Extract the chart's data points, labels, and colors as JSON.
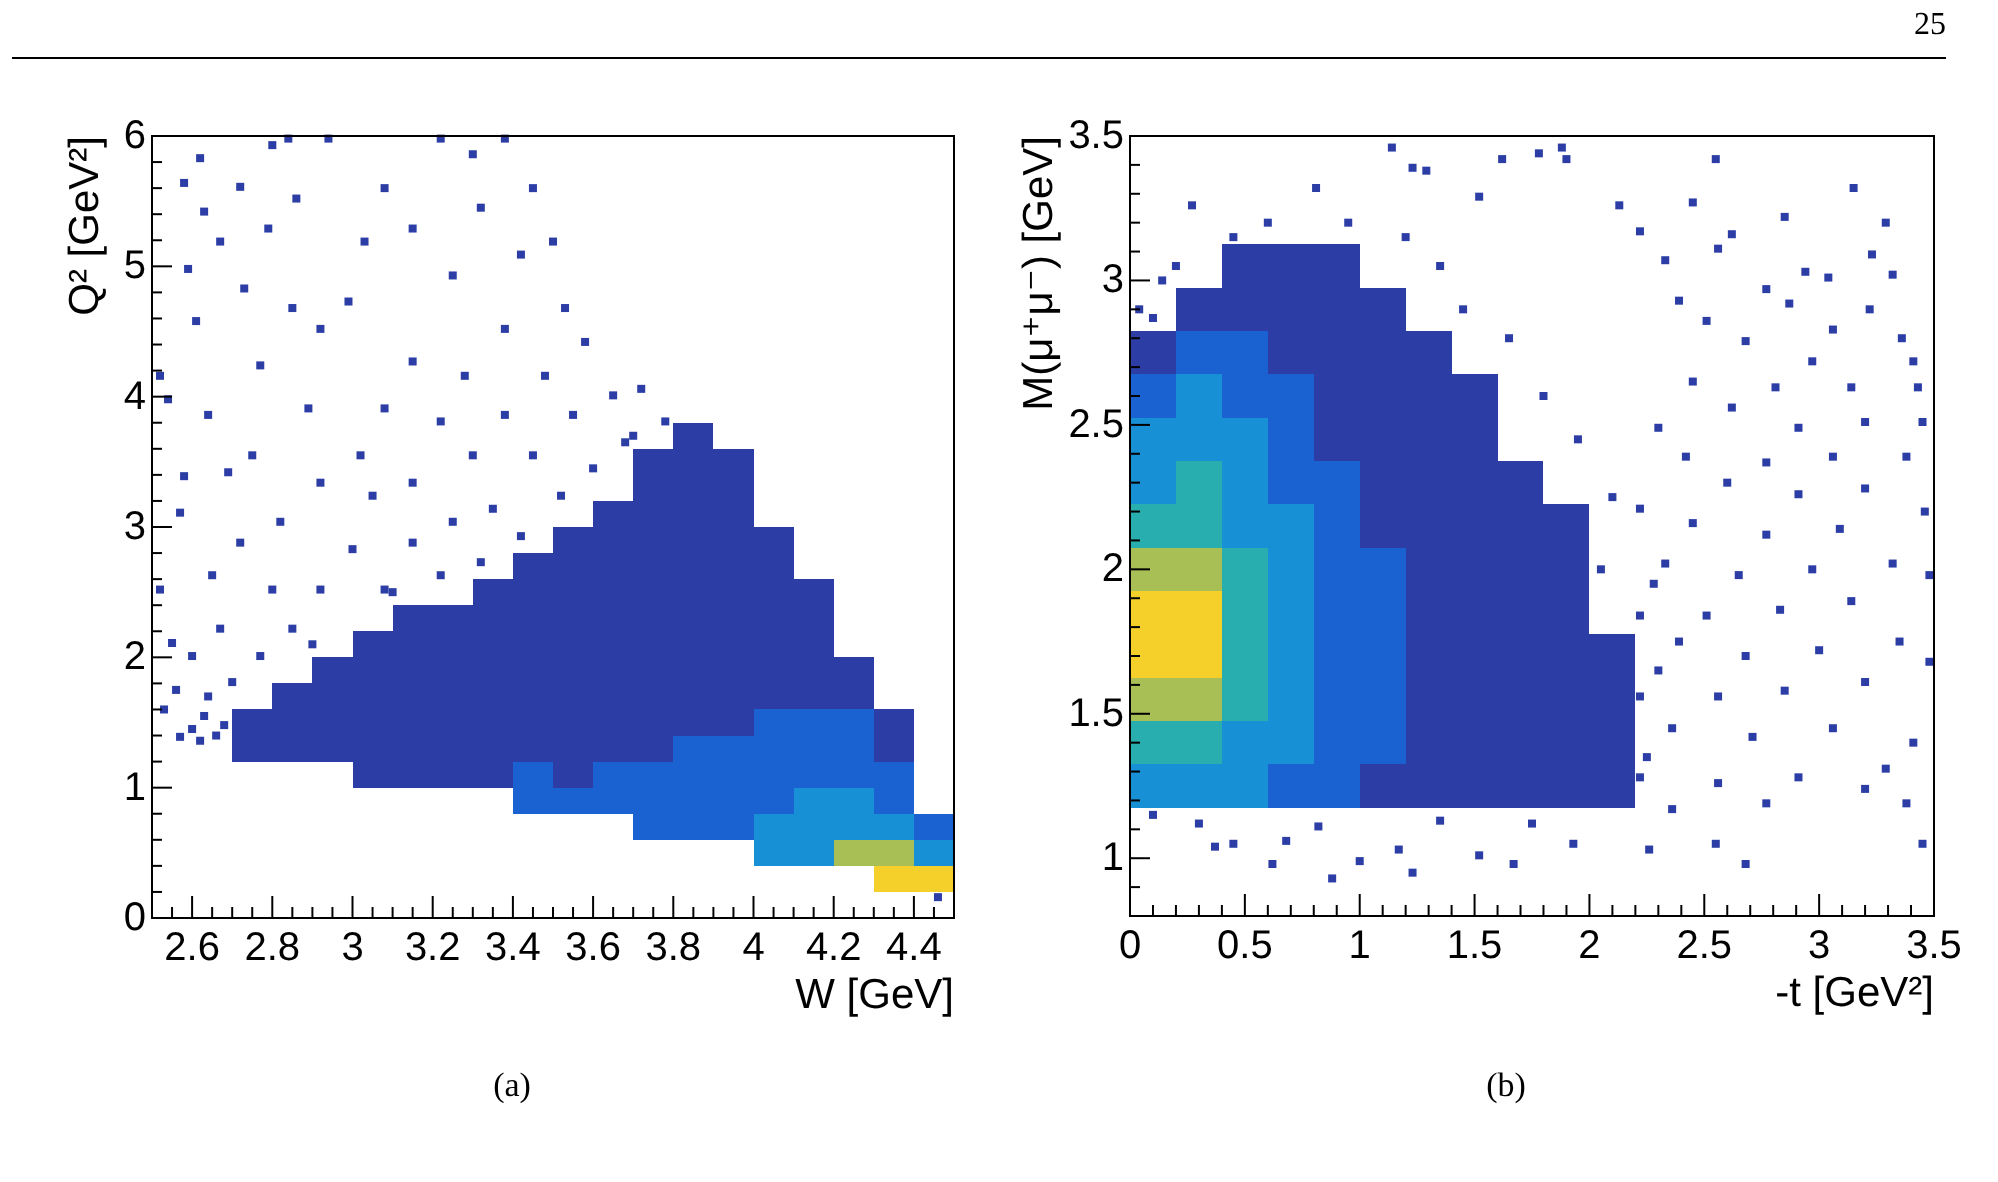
{
  "chart_data": [
    {
      "type": "scatter",
      "xlabel": "W [GeV]",
      "ylabel": "Q² [GeV²]",
      "xlim": [
        2.5,
        4.5
      ],
      "ylim": [
        0,
        6
      ],
      "marker": "square",
      "xticks": [
        {
          "value": 2.55,
          "label": null
        },
        2.6,
        {
          "value": 2.65,
          "label": null
        },
        {
          "value": 2.7,
          "label": null
        },
        {
          "value": 2.75,
          "label": null
        },
        2.8,
        {
          "value": 2.85,
          "label": null
        },
        {
          "value": 2.9,
          "label": null
        },
        {
          "value": 2.95,
          "label": null
        },
        3,
        {
          "value": 3.05,
          "label": null
        },
        {
          "value": 3.1,
          "label": null
        },
        {
          "value": 3.15,
          "label": null
        },
        3.2,
        {
          "value": 3.25,
          "label": null
        },
        {
          "value": 3.3,
          "label": null
        },
        {
          "value": 3.35,
          "label": null
        },
        3.4,
        {
          "value": 3.45,
          "label": null
        },
        {
          "value": 3.5,
          "label": null
        },
        {
          "value": 3.55,
          "label": null
        },
        3.6,
        {
          "value": 3.65,
          "label": null
        },
        {
          "value": 3.7,
          "label": null
        },
        {
          "value": 3.75,
          "label": null
        },
        3.8,
        {
          "value": 3.85,
          "label": null
        },
        {
          "value": 3.9,
          "label": null
        },
        {
          "value": 3.95,
          "label": null
        },
        4,
        {
          "value": 4.05,
          "label": null
        },
        {
          "value": 4.1,
          "label": null
        },
        {
          "value": 4.15,
          "label": null
        },
        4.2,
        {
          "value": 4.25,
          "label": null
        },
        {
          "value": 4.3,
          "label": null
        },
        {
          "value": 4.35,
          "label": null
        },
        4.4,
        {
          "value": 4.45,
          "label": null
        }
      ],
      "yticks": [
        0,
        {
          "value": 0.2,
          "label": null
        },
        {
          "value": 0.4,
          "label": null
        },
        {
          "value": 0.6,
          "label": null
        },
        {
          "value": 0.8,
          "label": null
        },
        1,
        {
          "value": 1.2,
          "label": null
        },
        {
          "value": 1.4,
          "label": null
        },
        {
          "value": 1.6,
          "label": null
        },
        {
          "value": 1.8,
          "label": null
        },
        2,
        {
          "value": 2.2,
          "label": null
        },
        {
          "value": 2.4,
          "label": null
        },
        {
          "value": 2.6,
          "label": null
        },
        {
          "value": 2.8,
          "label": null
        },
        3,
        {
          "value": 3.2,
          "label": null
        },
        {
          "value": 3.4,
          "label": null
        },
        {
          "value": 3.6,
          "label": null
        },
        {
          "value": 3.8,
          "label": null
        },
        4,
        {
          "value": 4.2,
          "label": null
        },
        {
          "value": 4.4,
          "label": null
        },
        {
          "value": 4.6,
          "label": null
        },
        {
          "value": 4.8,
          "label": null
        },
        5,
        {
          "value": 5.2,
          "label": null
        },
        {
          "value": 5.4,
          "label": null
        },
        {
          "value": 5.6,
          "label": null
        },
        {
          "value": 5.8,
          "label": null
        },
        6
      ],
      "series": [
        {
          "color": "#2c3ea6",
          "x": [
            2.75,
            2.75,
            2.85,
            2.85,
            2.85,
            2.95,
            2.95,
            2.95,
            2.95,
            3.05,
            3.05,
            3.05,
            3.05,
            3.05,
            3.05,
            3.15,
            3.15,
            3.15,
            3.15,
            3.15,
            3.15,
            3.15,
            3.25,
            3.25,
            3.25,
            3.25,
            3.25,
            3.25,
            3.25,
            3.35,
            3.35,
            3.35,
            3.35,
            3.35,
            3.35,
            3.35,
            3.35,
            3.45,
            3.45,
            3.45,
            3.45,
            3.45,
            3.45,
            3.45,
            3.45,
            3.55,
            3.55,
            3.55,
            3.55,
            3.55,
            3.55,
            3.55,
            3.55,
            3.55,
            3.55,
            3.65,
            3.65,
            3.65,
            3.65,
            3.65,
            3.65,
            3.65,
            3.65,
            3.65,
            3.65,
            3.75,
            3.75,
            3.75,
            3.75,
            3.75,
            3.75,
            3.75,
            3.75,
            3.75,
            3.75,
            3.75,
            3.75,
            3.85,
            3.85,
            3.85,
            3.85,
            3.85,
            3.85,
            3.85,
            3.85,
            3.85,
            3.85,
            3.85,
            3.85,
            3.95,
            3.95,
            3.95,
            3.95,
            3.95,
            3.95,
            3.95,
            3.95,
            3.95,
            3.95,
            3.95,
            4.05,
            4.05,
            4.05,
            4.05,
            4.05,
            4.05,
            4.05,
            4.15,
            4.15,
            4.15,
            4.15,
            4.15,
            4.25,
            4.25,
            4.35,
            4.35
          ],
          "values": [
            1.3,
            1.5,
            1.3,
            1.5,
            1.7,
            1.3,
            1.5,
            1.7,
            1.9,
            1.1,
            1.3,
            1.5,
            1.7,
            1.9,
            2.1,
            1.1,
            1.3,
            1.5,
            1.7,
            1.9,
            2.1,
            2.3,
            1.1,
            1.3,
            1.5,
            1.7,
            1.9,
            2.1,
            2.3,
            1.1,
            1.3,
            1.5,
            1.7,
            1.9,
            2.1,
            2.3,
            2.5,
            1.3,
            1.5,
            1.7,
            1.9,
            2.1,
            2.3,
            2.5,
            2.7,
            1.1,
            1.3,
            1.5,
            1.7,
            1.9,
            2.1,
            2.3,
            2.5,
            2.7,
            2.9,
            1.3,
            1.5,
            1.7,
            1.9,
            2.1,
            2.3,
            2.5,
            2.7,
            2.9,
            3.1,
            1.3,
            1.5,
            1.7,
            1.9,
            2.1,
            2.3,
            2.5,
            2.7,
            2.9,
            3.1,
            3.3,
            3.5,
            1.5,
            1.7,
            1.9,
            2.1,
            2.3,
            2.5,
            2.7,
            2.9,
            3.1,
            3.3,
            3.5,
            3.7,
            1.5,
            1.7,
            1.9,
            2.1,
            2.3,
            2.5,
            2.7,
            2.9,
            3.1,
            3.3,
            3.5,
            1.7,
            1.9,
            2.1,
            2.3,
            2.5,
            2.7,
            2.9,
            1.7,
            1.9,
            2.1,
            2.3,
            2.5,
            1.7,
            1.9,
            1.3,
            1.5
          ]
        },
        {
          "color": "#1a62d2",
          "x": [
            3.45,
            3.45,
            3.55,
            3.65,
            3.65,
            3.75,
            3.75,
            3.75,
            3.85,
            3.85,
            3.85,
            3.85,
            3.95,
            3.95,
            3.95,
            3.95,
            4.05,
            4.05,
            4.05,
            4.05,
            4.15,
            4.15,
            4.15,
            4.25,
            4.25,
            4.25,
            4.35,
            4.35,
            4.45
          ],
          "values": [
            0.9,
            1.1,
            0.9,
            0.9,
            1.1,
            0.7,
            0.9,
            1.1,
            0.7,
            0.9,
            1.1,
            1.3,
            0.7,
            0.9,
            1.1,
            1.3,
            0.9,
            1.1,
            1.3,
            1.5,
            1.1,
            1.3,
            1.5,
            1.1,
            1.3,
            1.5,
            0.9,
            1.1,
            0.7
          ]
        },
        {
          "color": "#1890d6",
          "x": [
            4.05,
            4.05,
            4.15,
            4.15,
            4.15,
            4.25,
            4.25,
            4.35,
            4.45
          ],
          "values": [
            0.5,
            0.7,
            0.5,
            0.7,
            0.9,
            0.7,
            0.9,
            0.7,
            0.5
          ]
        },
        {
          "color": "#a8bf55",
          "x": [
            4.25,
            4.35
          ],
          "values": [
            0.5,
            0.5
          ]
        },
        {
          "color": "#f5cf2a",
          "x": [
            4.35,
            4.45
          ],
          "values": [
            0.3,
            0.3
          ]
        },
        {
          "color": "#2c3ea6",
          "x": [
            2.62,
            2.58,
            2.72,
            2.63,
            2.67,
            2.59,
            2.73,
            2.79,
            2.86,
            2.94,
            2.84,
            2.8,
            2.61,
            2.52,
            2.54,
            2.64,
            2.69,
            2.58,
            2.57,
            2.52,
            2.55,
            2.53,
            2.6,
            2.65,
            2.75,
            2.77,
            2.85,
            2.92,
            2.99,
            2.89,
            2.82,
            2.92,
            2.72,
            2.8,
            2.67,
            2.64,
            2.57,
            2.6,
            2.7,
            2.77,
            2.85,
            2.92,
            3,
            3.05,
            3.02,
            3.08,
            3.15,
            3.03,
            3.08,
            3.22,
            3.3,
            3.38,
            3.15,
            3.25,
            3.32,
            3.42,
            3.38,
            3.28,
            3.22,
            3.15,
            3.3,
            3.25,
            3.15,
            3.08,
            3.22,
            3.35,
            3.45,
            3.38,
            3.48,
            3.53,
            3.5,
            3.45,
            3.58,
            3.65,
            3.68,
            3.55,
            3.42,
            3.52,
            3.6,
            3.72,
            3.78,
            3.32,
            2.62,
            2.66,
            2.68,
            2.63,
            2.56,
            4.46,
            2.9,
            3.1,
            3.7
          ],
          "values": [
            5.83,
            5.64,
            5.61,
            5.42,
            5.19,
            4.98,
            4.83,
            5.29,
            5.52,
            5.98,
            5.98,
            5.93,
            4.58,
            4.16,
            3.98,
            3.86,
            3.42,
            3.39,
            3.11,
            2.52,
            2.11,
            1.6,
            2.01,
            2.63,
            3.55,
            4.24,
            4.68,
            4.52,
            4.73,
            3.91,
            3.04,
            3.34,
            2.88,
            2.52,
            2.22,
            1.7,
            1.39,
            1.45,
            1.81,
            2.01,
            2.22,
            2.52,
            2.83,
            3.24,
            3.55,
            3.91,
            4.27,
            5.19,
            5.6,
            5.98,
            5.86,
            5.98,
            5.29,
            4.93,
            5.45,
            5.09,
            4.52,
            4.16,
            3.81,
            3.34,
            3.55,
            3.04,
            2.88,
            2.52,
            2.63,
            3.14,
            3.55,
            3.86,
            4.16,
            4.68,
            5.19,
            5.6,
            4.42,
            4.01,
            3.65,
            3.86,
            2.93,
            3.24,
            3.45,
            4.06,
            3.81,
            2.73,
            1.36,
            1.4,
            1.48,
            1.55,
            1.75,
            0.16,
            2.1,
            2.5,
            3.7
          ]
        }
      ],
      "annotations": [
        "(a)"
      ]
    },
    {
      "type": "scatter",
      "xlabel": "-t [GeV²]",
      "ylabel": "M(μ⁺μ⁻) [GeV]",
      "xlim": [
        0,
        3.5
      ],
      "ylim": [
        0.8,
        3.5
      ],
      "marker": "square",
      "xticks": [
        0,
        {
          "value": 0.1,
          "label": null
        },
        {
          "value": 0.2,
          "label": null
        },
        {
          "value": 0.3,
          "label": null
        },
        {
          "value": 0.4,
          "label": null
        },
        0.5,
        {
          "value": 0.6,
          "label": null
        },
        {
          "value": 0.7,
          "label": null
        },
        {
          "value": 0.8,
          "label": null
        },
        {
          "value": 0.9,
          "label": null
        },
        1,
        {
          "value": 1.1,
          "label": null
        },
        {
          "value": 1.2,
          "label": null
        },
        {
          "value": 1.3,
          "label": null
        },
        {
          "value": 1.4,
          "label": null
        },
        1.5,
        {
          "value": 1.6,
          "label": null
        },
        {
          "value": 1.7,
          "label": null
        },
        {
          "value": 1.8,
          "label": null
        },
        {
          "value": 1.9,
          "label": null
        },
        2,
        {
          "value": 2.1,
          "label": null
        },
        {
          "value": 2.2,
          "label": null
        },
        {
          "value": 2.3,
          "label": null
        },
        {
          "value": 2.4,
          "label": null
        },
        2.5,
        {
          "value": 2.6,
          "label": null
        },
        {
          "value": 2.7,
          "label": null
        },
        {
          "value": 2.8,
          "label": null
        },
        {
          "value": 2.9,
          "label": null
        },
        3,
        {
          "value": 3.1,
          "label": null
        },
        {
          "value": 3.2,
          "label": null
        },
        {
          "value": 3.3,
          "label": null
        },
        {
          "value": 3.4,
          "label": null
        },
        3.5
      ],
      "yticks": [
        {
          "value": 0.9,
          "label": null
        },
        1,
        {
          "value": 1.1,
          "label": null
        },
        {
          "value": 1.2,
          "label": null
        },
        {
          "value": 1.3,
          "label": null
        },
        {
          "value": 1.4,
          "label": null
        },
        1.5,
        {
          "value": 1.6,
          "label": null
        },
        {
          "value": 1.7,
          "label": null
        },
        {
          "value": 1.8,
          "label": null
        },
        {
          "value": 1.9,
          "label": null
        },
        2,
        {
          "value": 2.1,
          "label": null
        },
        {
          "value": 2.2,
          "label": null
        },
        {
          "value": 2.3,
          "label": null
        },
        {
          "value": 2.4,
          "label": null
        },
        2.5,
        {
          "value": 2.6,
          "label": null
        },
        {
          "value": 2.7,
          "label": null
        },
        {
          "value": 2.8,
          "label": null
        },
        {
          "value": 2.9,
          "label": null
        },
        3,
        {
          "value": 3.1,
          "label": null
        },
        {
          "value": 3.2,
          "label": null
        },
        {
          "value": 3.3,
          "label": null
        },
        {
          "value": 3.4,
          "label": null
        },
        3.5
      ],
      "series": [
        {
          "color": "#2c3ea6",
          "x": [
            0.1,
            0.3,
            0.5,
            0.5,
            0.7,
            0.7,
            0.7,
            0.9,
            0.9,
            0.9,
            0.9,
            0.9,
            1.1,
            1.1,
            1.1,
            1.1,
            1.1,
            1.1,
            1.1,
            1.3,
            1.3,
            1.3,
            1.3,
            1.3,
            1.3,
            1.3,
            1.3,
            1.3,
            1.3,
            1.3,
            1.5,
            1.5,
            1.5,
            1.5,
            1.5,
            1.5,
            1.5,
            1.5,
            1.5,
            1.5,
            1.7,
            1.7,
            1.7,
            1.7,
            1.7,
            1.7,
            1.7,
            1.7,
            1.9,
            1.9,
            1.9,
            1.9,
            1.9,
            1.9,
            1.9,
            2.1,
            2.1,
            2.1,
            2.1
          ],
          "values": [
            2.75,
            2.9,
            2.9,
            3.05,
            2.75,
            2.9,
            3.05,
            2.45,
            2.6,
            2.75,
            2.9,
            3.05,
            1.25,
            2.15,
            2.3,
            2.45,
            2.6,
            2.75,
            2.9,
            1.25,
            1.4,
            1.55,
            1.7,
            1.85,
            2.0,
            2.15,
            2.3,
            2.45,
            2.6,
            2.75,
            1.25,
            1.4,
            1.55,
            1.7,
            1.85,
            2.0,
            2.15,
            2.3,
            2.45,
            2.6,
            1.25,
            1.4,
            1.55,
            1.7,
            1.85,
            2.0,
            2.15,
            2.3,
            1.25,
            1.4,
            1.55,
            1.7,
            1.85,
            2.0,
            2.15,
            1.25,
            1.4,
            1.55,
            1.7
          ]
        },
        {
          "color": "#1a62d2",
          "x": [
            0.1,
            0.3,
            0.5,
            0.5,
            0.7,
            0.7,
            0.7,
            0.7,
            0.9,
            0.9,
            0.9,
            0.9,
            0.9,
            0.9,
            0.9,
            0.9,
            1.1,
            1.1,
            1.1,
            1.1,
            1.1
          ],
          "values": [
            2.6,
            2.75,
            2.6,
            2.75,
            1.25,
            2.3,
            2.45,
            2.6,
            1.25,
            1.4,
            1.55,
            1.7,
            1.85,
            2.0,
            2.15,
            2.3,
            1.4,
            1.55,
            1.7,
            1.85,
            2.0
          ]
        },
        {
          "color": "#1890d6",
          "x": [
            0.1,
            0.1,
            0.1,
            0.3,
            0.3,
            0.3,
            0.5,
            0.5,
            0.5,
            0.5,
            0.5,
            0.7,
            0.7,
            0.7,
            0.7,
            0.7,
            0.7
          ],
          "values": [
            1.25,
            2.3,
            2.45,
            1.25,
            2.45,
            2.6,
            1.25,
            1.4,
            2.15,
            2.3,
            2.45,
            1.4,
            1.55,
            1.7,
            1.85,
            2.0,
            2.15
          ]
        },
        {
          "color": "#29aeb0",
          "x": [
            0.1,
            0.1,
            0.3,
            0.3,
            0.3,
            0.5,
            0.5,
            0.5,
            0.5
          ],
          "values": [
            1.4,
            2.15,
            1.4,
            2.15,
            2.3,
            1.55,
            1.7,
            1.85,
            2.0
          ]
        },
        {
          "color": "#a8bf55",
          "x": [
            0.1,
            0.1,
            0.3,
            0.3
          ],
          "values": [
            1.55,
            2.0,
            1.55,
            2.0
          ]
        },
        {
          "color": "#f5cf2a",
          "x": [
            0.1,
            0.1,
            0.3,
            0.3
          ],
          "values": [
            1.7,
            1.85,
            1.7,
            1.85
          ]
        },
        {
          "color": "#2c3ea6",
          "x": [
            1.14,
            1.23,
            1.29,
            1.62,
            1.78,
            1.88,
            1.9,
            2.55,
            3.15,
            0.27,
            0.81,
            1.52,
            2.13,
            2.45,
            3.29,
            2.85,
            2.22,
            2.62,
            2.33,
            2.56,
            3.04,
            3.32,
            3.23,
            0.14,
            2.77,
            2.94,
            2.39,
            2.51,
            2.87,
            3.22,
            3.36,
            3.41,
            3.06,
            2.68,
            2.97,
            3.14,
            3.43,
            2.81,
            2.45,
            2.62,
            2.91,
            3.2,
            3.45,
            3.38,
            3.06,
            2.77,
            2.42,
            2.3,
            2.6,
            2.91,
            3.2,
            3.46,
            3.09,
            2.77,
            2.45,
            2.22,
            2.33,
            2.65,
            2.97,
            3.32,
            3.48,
            3.14,
            2.83,
            2.51,
            2.22,
            2.39,
            2.68,
            3,
            3.35,
            3.48,
            3.2,
            2.85,
            2.56,
            2.22,
            2.36,
            2.71,
            3.06,
            3.41,
            3.29,
            2.91,
            2.56,
            2.22,
            2.36,
            2.77,
            3.2,
            3.38,
            3.45,
            2.68,
            2.55,
            2.26,
            1.93,
            1.67,
            1.52,
            1.23,
            0.88,
            1,
            0.62,
            0.45,
            0.37,
            1.17,
            0.68,
            0.1,
            0.3,
            0.82,
            1.35,
            1.75,
            0.04,
            0.1,
            2.25,
            2.3,
            2.28,
            2.05,
            2.1,
            1.95,
            1.8,
            1.65,
            1.45,
            1.35,
            1.2,
            0.95,
            0.6,
            0.45,
            0.2
          ],
          "values": [
            3.46,
            3.39,
            3.38,
            3.42,
            3.44,
            3.46,
            3.42,
            3.42,
            3.32,
            3.26,
            3.32,
            3.29,
            3.26,
            3.27,
            3.2,
            3.22,
            3.17,
            3.16,
            3.07,
            3.11,
            3.01,
            3.02,
            3.09,
            3,
            2.97,
            3.03,
            2.93,
            2.86,
            2.92,
            2.9,
            2.8,
            2.72,
            2.83,
            2.79,
            2.72,
            2.63,
            2.63,
            2.63,
            2.65,
            2.56,
            2.49,
            2.51,
            2.51,
            2.39,
            2.39,
            2.37,
            2.39,
            2.49,
            2.3,
            2.26,
            2.28,
            2.2,
            2.14,
            2.12,
            2.16,
            2.21,
            2.02,
            1.98,
            2,
            2.02,
            1.98,
            1.89,
            1.86,
            1.84,
            1.84,
            1.75,
            1.7,
            1.72,
            1.75,
            1.68,
            1.61,
            1.58,
            1.56,
            1.56,
            1.45,
            1.42,
            1.45,
            1.4,
            1.31,
            1.28,
            1.26,
            1.28,
            1.17,
            1.19,
            1.24,
            1.19,
            1.05,
            0.98,
            1.05,
            1.03,
            1.05,
            0.98,
            1.01,
            0.95,
            0.93,
            0.99,
            0.98,
            1.05,
            1.04,
            1.03,
            1.06,
            1.15,
            1.12,
            1.11,
            1.13,
            1.12,
            2.9,
            2.87,
            1.35,
            1.65,
            1.95,
            2,
            2.25,
            2.45,
            2.6,
            2.8,
            2.9,
            3.05,
            3.15,
            3.2,
            3.2,
            3.15,
            3.05
          ]
        }
      ],
      "annotations": [
        "(b)",
        "25"
      ]
    }
  ]
}
